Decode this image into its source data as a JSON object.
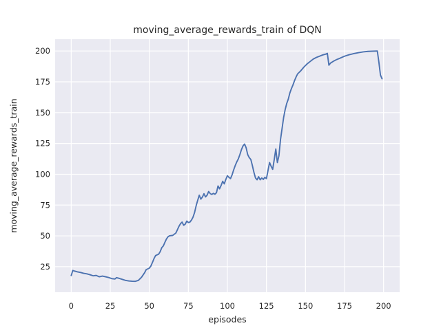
{
  "chart_data": {
    "type": "line",
    "title": "moving_average_rewards_train of DQN",
    "xlabel": "episodes",
    "ylabel": "moving_average_rewards_train",
    "x_ticks": [
      0,
      25,
      50,
      75,
      100,
      125,
      150,
      175,
      200
    ],
    "y_ticks": [
      25,
      50,
      75,
      100,
      125,
      150,
      175,
      200
    ],
    "xlim": [
      -10.3,
      210.3
    ],
    "ylim": [
      4.3,
      209.6
    ],
    "grid": true,
    "legend": "none",
    "style": {
      "axes_background": "#EAEAF2",
      "grid_color": "#FFFFFF",
      "line_color": "#4C72B0",
      "text_color": "#262626",
      "figure_background": "#FFFFFF"
    },
    "series": [
      {
        "name": "moving_average_rewards_train",
        "points": [
          [
            0,
            17.8
          ],
          [
            1,
            21.9
          ],
          [
            2,
            21.5
          ],
          [
            4,
            20.8
          ],
          [
            6,
            20.3
          ],
          [
            8,
            19.6
          ],
          [
            10,
            19.2
          ],
          [
            12,
            18.5
          ],
          [
            14,
            17.6
          ],
          [
            16,
            17.9
          ],
          [
            18,
            16.8
          ],
          [
            20,
            17.4
          ],
          [
            22,
            16.8
          ],
          [
            24,
            16.2
          ],
          [
            26,
            15.3
          ],
          [
            28,
            15.0
          ],
          [
            29,
            16.1
          ],
          [
            31,
            15.4
          ],
          [
            33,
            14.6
          ],
          [
            35,
            13.8
          ],
          [
            37,
            13.4
          ],
          [
            39,
            13.2
          ],
          [
            41,
            13.1
          ],
          [
            43,
            13.9
          ],
          [
            45,
            16.4
          ],
          [
            47,
            20.1
          ],
          [
            48,
            22.6
          ],
          [
            50,
            23.8
          ],
          [
            51,
            25.5
          ],
          [
            52,
            28.4
          ],
          [
            53,
            31.5
          ],
          [
            54,
            34.0
          ],
          [
            56,
            35.2
          ],
          [
            57,
            37.3
          ],
          [
            58,
            40.5
          ],
          [
            59,
            41.9
          ],
          [
            60,
            44.8
          ],
          [
            61,
            47.5
          ],
          [
            62,
            49.3
          ],
          [
            63,
            50.1
          ],
          [
            65,
            50.4
          ],
          [
            67,
            52.3
          ],
          [
            68,
            55.0
          ],
          [
            69,
            57.8
          ],
          [
            70,
            59.9
          ],
          [
            71,
            61.2
          ],
          [
            72,
            58.6
          ],
          [
            73,
            59.5
          ],
          [
            74,
            62.0
          ],
          [
            75,
            60.8
          ],
          [
            76,
            61.2
          ],
          [
            77,
            62.8
          ],
          [
            78,
            65.2
          ],
          [
            79,
            69.0
          ],
          [
            80,
            74.5
          ],
          [
            81,
            78.9
          ],
          [
            82,
            83.0
          ],
          [
            83,
            79.8
          ],
          [
            84,
            81.5
          ],
          [
            85,
            84.2
          ],
          [
            86,
            81.6
          ],
          [
            87,
            83.0
          ],
          [
            88,
            86.0
          ],
          [
            89,
            84.3
          ],
          [
            90,
            83.6
          ],
          [
            91,
            84.5
          ],
          [
            92,
            83.8
          ],
          [
            93,
            85.0
          ],
          [
            94,
            90.5
          ],
          [
            95,
            88.2
          ],
          [
            96,
            91.0
          ],
          [
            97,
            94.3
          ],
          [
            98,
            92.2
          ],
          [
            99,
            95.8
          ],
          [
            100,
            98.8
          ],
          [
            101,
            97.5
          ],
          [
            102,
            96.5
          ],
          [
            103,
            99.5
          ],
          [
            104,
            103.5
          ],
          [
            105,
            107.0
          ],
          [
            106,
            110.0
          ],
          [
            107,
            112.5
          ],
          [
            108,
            116.0
          ],
          [
            109,
            120.0
          ],
          [
            110,
            123.0
          ],
          [
            111,
            124.5
          ],
          [
            112,
            121.5
          ],
          [
            113,
            116.0
          ],
          [
            114,
            113.5
          ],
          [
            115,
            112.0
          ],
          [
            116,
            107.0
          ],
          [
            117,
            101.5
          ],
          [
            118,
            97.0
          ],
          [
            119,
            95.5
          ],
          [
            120,
            98.0
          ],
          [
            121,
            95.5
          ],
          [
            122,
            97.0
          ],
          [
            123,
            95.8
          ],
          [
            124,
            97.5
          ],
          [
            125,
            96.5
          ],
          [
            126,
            103.0
          ],
          [
            127,
            109.5
          ],
          [
            128,
            106.5
          ],
          [
            129,
            104.0
          ],
          [
            130,
            112.0
          ],
          [
            131,
            120.5
          ],
          [
            132,
            109.5
          ],
          [
            133,
            115.0
          ],
          [
            134,
            128.0
          ],
          [
            135,
            137.0
          ],
          [
            136,
            146.0
          ],
          [
            137,
            152.5
          ],
          [
            138,
            157.5
          ],
          [
            139,
            161.0
          ],
          [
            140,
            166.0
          ],
          [
            141,
            169.5
          ],
          [
            142,
            172.5
          ],
          [
            143,
            176.0
          ],
          [
            144,
            179.0
          ],
          [
            145,
            181.5
          ],
          [
            147,
            184.0
          ],
          [
            149,
            187.0
          ],
          [
            151,
            189.5
          ],
          [
            153,
            191.5
          ],
          [
            155,
            193.5
          ],
          [
            157,
            194.8
          ],
          [
            159,
            195.8
          ],
          [
            161,
            196.8
          ],
          [
            163,
            197.5
          ],
          [
            164,
            198.1
          ],
          [
            165,
            188.5
          ],
          [
            166,
            190.2
          ],
          [
            168,
            191.8
          ],
          [
            170,
            193.1
          ],
          [
            172,
            194.1
          ],
          [
            175,
            195.8
          ],
          [
            178,
            197.0
          ],
          [
            181,
            197.9
          ],
          [
            184,
            198.7
          ],
          [
            187,
            199.3
          ],
          [
            190,
            199.7
          ],
          [
            193,
            199.9
          ],
          [
            196,
            200.0
          ],
          [
            197,
            191.0
          ],
          [
            198,
            180.5
          ],
          [
            199,
            177.5
          ]
        ]
      }
    ]
  }
}
